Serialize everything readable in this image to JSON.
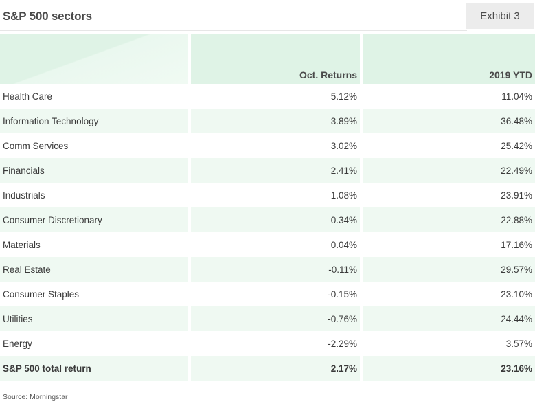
{
  "title": "S&P 500 sectors",
  "exhibit_label": "Exhibit 3",
  "columns": [
    "",
    "Oct. Returns",
    "2019 YTD"
  ],
  "rows": [
    {
      "sector": "Health Care",
      "oct": "5.12%",
      "ytd": "11.04%"
    },
    {
      "sector": "Information Technology",
      "oct": "3.89%",
      "ytd": "36.48%"
    },
    {
      "sector": "Comm Services",
      "oct": "3.02%",
      "ytd": "25.42%"
    },
    {
      "sector": "Financials",
      "oct": "2.41%",
      "ytd": "22.49%"
    },
    {
      "sector": "Industrials",
      "oct": "1.08%",
      "ytd": "23.91%"
    },
    {
      "sector": "Consumer Discretionary",
      "oct": "0.34%",
      "ytd": "22.88%"
    },
    {
      "sector": "Materials",
      "oct": "0.04%",
      "ytd": "17.16%"
    },
    {
      "sector": "Real Estate",
      "oct": "-0.11%",
      "ytd": "29.57%"
    },
    {
      "sector": "Consumer Staples",
      "oct": "-0.15%",
      "ytd": "23.10%"
    },
    {
      "sector": "Utilities",
      "oct": "-0.76%",
      "ytd": "24.44%"
    },
    {
      "sector": "Energy",
      "oct": "-2.29%",
      "ytd": "3.57%"
    }
  ],
  "total": {
    "sector": "S&P 500 total return",
    "oct": "2.17%",
    "ytd": "23.16%"
  },
  "source": "Source: Morningstar",
  "colors": {
    "header_green": "#dff3e6",
    "row_stripe": "#eff9f2",
    "exhibit_bg": "#ececec"
  }
}
